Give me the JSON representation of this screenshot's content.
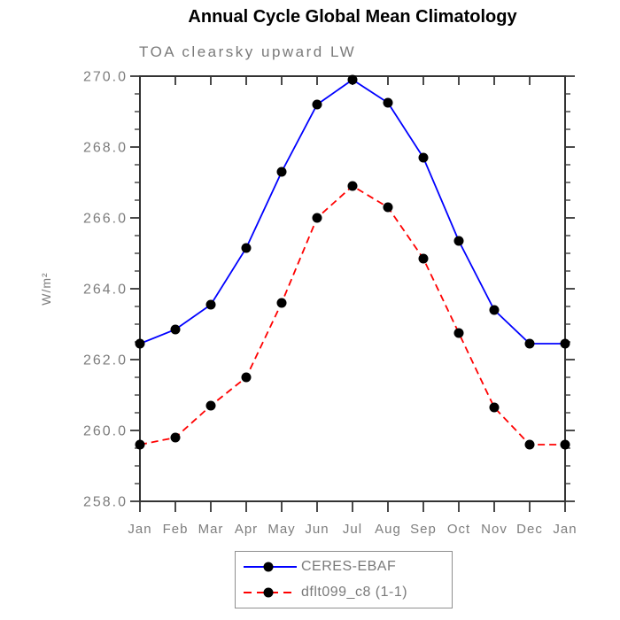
{
  "page": {
    "title": "Annual Cycle Global Mean Climatology",
    "subtitle": "TOA clearsky upward LW"
  },
  "chart_data": {
    "type": "line",
    "title": "Annual Cycle Global Mean Climatology",
    "subtitle": "TOA clearsky upward LW",
    "xlabel": "",
    "ylabel": "W/m²",
    "x": [
      "Jan",
      "Feb",
      "Mar",
      "Apr",
      "May",
      "Jun",
      "Jul",
      "Aug",
      "Sep",
      "Oct",
      "Nov",
      "Dec",
      "Jan"
    ],
    "series": [
      {
        "name": "CERES-EBAF",
        "color": "#0000ff",
        "line_style": "solid",
        "marker": "filled-circle",
        "marker_color": "#000000",
        "values": [
          262.45,
          262.85,
          263.55,
          265.15,
          267.3,
          269.2,
          269.9,
          269.25,
          267.7,
          265.35,
          263.4,
          262.45,
          262.45
        ]
      },
      {
        "name": "dflt099_c8 (1-1)",
        "color": "#ff0000",
        "line_style": "dashed",
        "marker": "filled-circle",
        "marker_color": "#000000",
        "values": [
          259.6,
          259.8,
          260.7,
          261.5,
          263.6,
          266.0,
          266.9,
          266.3,
          264.85,
          262.75,
          260.65,
          259.6,
          259.6
        ]
      }
    ],
    "ylim": [
      258.0,
      270.0
    ],
    "ytick_step": 2.0,
    "yminor_step": 0.5,
    "ytick_labels": [
      "258.0",
      "260.0",
      "262.0",
      "264.0",
      "266.0",
      "268.0",
      "270.0"
    ],
    "grid": false,
    "legend_position": "bottom-center"
  },
  "colors": {
    "axis_box": "#333333",
    "tick": "#4a4a4a",
    "label_text": "#7d7d7d",
    "title_text": "#000000"
  }
}
